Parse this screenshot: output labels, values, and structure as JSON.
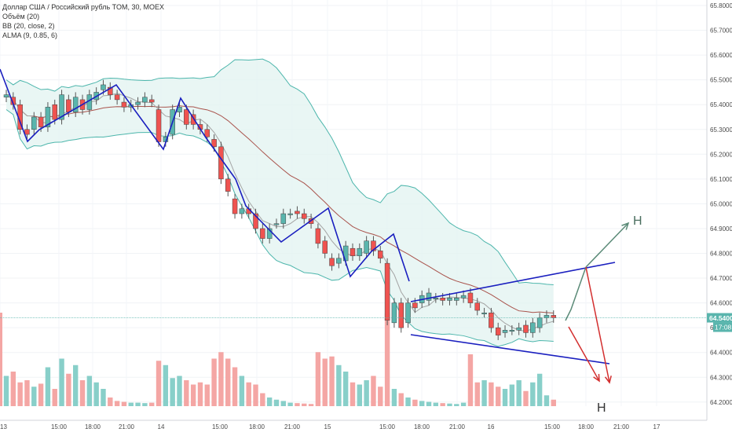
{
  "legend": {
    "main": "Доллар США / Российский рубль TOM, 30, MOEX",
    "volume": "Объём (20)",
    "bb": "BB (20, close, 2)",
    "alma": "ALMA (9, 0.85, 6)"
  },
  "price_tag": {
    "value": "64.5400",
    "timer": "17:08"
  },
  "annotations": {
    "up_label": "H",
    "down_label": "H"
  },
  "colors": {
    "up": "#5ab5ad",
    "down": "#ef5350",
    "vol_up": "#88cfc9",
    "vol_down": "#f4a6a4",
    "bb_band": "#4db6ac",
    "bb_fill": "#e4f4f1",
    "bb_mid": "#a9534c",
    "alma": "#a4a4a4",
    "pattern": "#1a1fbf",
    "arrow_up": "#5a8a77",
    "arrow_down": "#d32f2f"
  },
  "chart_data": {
    "type": "candlestick",
    "title": "Доллар США / Российский рубль TOM, 30, MOEX",
    "ylim": [
      64.15,
      65.85
    ],
    "y_ticks": [
      "65.8000",
      "65.7000",
      "65.6000",
      "65.5000",
      "65.4000",
      "65.3000",
      "65.2000",
      "65.1000",
      "65.0000",
      "64.9000",
      "64.8000",
      "64.7000",
      "64.6000",
      "64.5000",
      "64.4000",
      "64.3000",
      "64.2000"
    ],
    "x_ticks": [
      "13",
      "15:00",
      "18:00",
      "21:00",
      "14",
      "15:00",
      "18:00",
      "21:00",
      "15",
      "15:00",
      "18:00",
      "21:00",
      "16",
      "15:00",
      "18:00",
      "21:00",
      "17"
    ],
    "last_price": 64.54,
    "candles": [
      [
        65.43,
        65.44
      ],
      [
        65.43,
        65.4
      ],
      [
        65.4,
        65.3
      ],
      [
        65.3,
        65.28
      ],
      [
        65.3,
        65.35
      ],
      [
        65.35,
        65.31
      ],
      [
        65.31,
        65.39
      ],
      [
        65.4,
        65.34
      ],
      [
        65.34,
        65.44
      ],
      [
        65.42,
        65.37
      ],
      [
        65.37,
        65.43
      ],
      [
        65.42,
        65.38
      ],
      [
        65.38,
        65.44
      ],
      [
        65.42,
        65.45
      ],
      [
        65.46,
        65.48
      ],
      [
        65.47,
        65.44
      ],
      [
        65.44,
        65.42
      ],
      [
        65.41,
        65.39
      ],
      [
        65.39,
        65.4
      ],
      [
        65.4,
        65.41
      ],
      [
        65.41,
        65.43
      ],
      [
        65.42,
        65.41
      ],
      [
        65.38,
        65.25
      ],
      [
        65.25,
        65.27
      ],
      [
        65.28,
        65.38
      ],
      [
        65.37,
        65.39
      ],
      [
        65.38,
        65.32
      ],
      [
        65.36,
        65.32
      ],
      [
        65.32,
        65.3
      ],
      [
        65.3,
        65.27
      ],
      [
        65.26,
        65.23
      ],
      [
        65.23,
        65.1
      ],
      [
        65.1,
        65.05
      ],
      [
        65.02,
        64.96
      ],
      [
        64.96,
        64.98
      ],
      [
        64.98,
        64.96
      ],
      [
        64.96,
        64.9
      ],
      [
        64.9,
        64.86
      ],
      [
        64.86,
        64.9
      ],
      [
        64.92,
        64.92
      ],
      [
        64.92,
        64.96
      ],
      [
        64.96,
        64.96
      ],
      [
        64.97,
        64.96
      ],
      [
        64.96,
        64.94
      ],
      [
        64.94,
        64.92
      ],
      [
        64.9,
        64.84
      ],
      [
        64.85,
        64.8
      ],
      [
        64.78,
        64.75
      ],
      [
        64.76,
        64.78
      ],
      [
        64.77,
        64.83
      ],
      [
        64.82,
        64.79
      ],
      [
        64.79,
        64.82
      ],
      [
        64.8,
        64.85
      ],
      [
        64.85,
        64.81
      ],
      [
        64.81,
        64.78
      ],
      [
        64.76,
        64.53
      ],
      [
        64.52,
        64.6
      ],
      [
        64.6,
        64.5
      ],
      [
        64.52,
        64.6
      ],
      [
        64.6,
        64.58
      ],
      [
        64.6,
        64.63
      ],
      [
        64.61,
        64.64
      ],
      [
        64.62,
        64.62
      ],
      [
        64.62,
        64.61
      ],
      [
        64.61,
        64.62
      ],
      [
        64.61,
        64.62
      ],
      [
        64.62,
        64.63
      ],
      [
        64.64,
        64.6
      ],
      [
        64.6,
        64.57
      ],
      [
        64.56,
        64.56
      ],
      [
        64.56,
        64.5
      ],
      [
        64.5,
        64.47
      ],
      [
        64.48,
        64.49
      ],
      [
        64.49,
        64.49
      ],
      [
        64.49,
        64.5
      ],
      [
        64.51,
        64.48
      ],
      [
        64.48,
        64.52
      ],
      [
        64.5,
        64.54
      ],
      [
        64.54,
        64.55
      ],
      [
        64.55,
        64.54
      ]
    ],
    "volume": [
      70,
      80,
      55,
      60,
      45,
      52,
      90,
      40,
      110,
      75,
      95,
      60,
      70,
      55,
      40,
      20,
      12,
      10,
      8,
      8,
      7,
      8,
      105,
      95,
      65,
      70,
      60,
      50,
      55,
      50,
      110,
      125,
      110,
      90,
      70,
      55,
      50,
      30,
      20,
      15,
      12,
      8,
      7,
      6,
      5,
      125,
      110,
      115,
      95,
      80,
      55,
      50,
      60,
      70,
      45,
      215,
      40,
      30,
      20,
      15,
      12,
      10,
      8,
      7,
      6,
      5,
      8,
      120,
      55,
      60,
      55,
      45,
      40,
      50,
      60,
      35,
      55,
      75,
      25,
      15
    ],
    "series": [
      {
        "name": "BB (20, close, 2)"
      },
      {
        "name": "ALMA (9, 0.85, 6)"
      }
    ]
  }
}
